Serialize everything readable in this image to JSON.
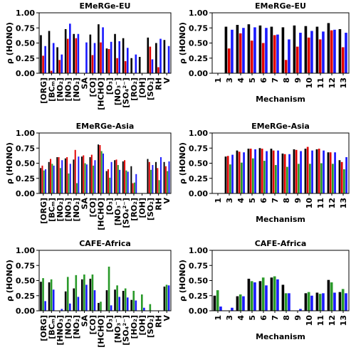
{
  "chart_data": [
    {
      "type": "bar",
      "title": "EMeRGe-EU",
      "ylabel": "ρ (HONO)",
      "categories": [
        "[ORG]",
        "[BCₘ]",
        "[NO₂]",
        "[NO₃]",
        "[NO₂]",
        "SA",
        "[CO]",
        "[HCHO]",
        "[O₃]",
        "[NO₃⁻]",
        "[SO₄²⁻]",
        "[RO₂]",
        "[OH]",
        "[SO₂]",
        "RH",
        "V"
      ],
      "series": [
        {
          "color": "#000000",
          "values": [
            0.63,
            0.7,
            0.43,
            0.73,
            0.65,
            null,
            0.64,
            0.81,
            0.41,
            0.65,
            0.58,
            0.25,
            0.27,
            0.59,
            0.5,
            0.55
          ]
        },
        {
          "color": "#e00000",
          "values": [
            0.29,
            0.04,
            0.22,
            0.57,
            0.58,
            null,
            0.3,
            0.51,
            0.4,
            0.25,
            0.2,
            null,
            null,
            0.44,
            0.1,
            null
          ]
        },
        {
          "color": "#1a1aff",
          "values": [
            0.45,
            0.5,
            0.31,
            0.82,
            0.65,
            0.51,
            0.5,
            0.76,
            0.52,
            0.53,
            0.42,
            0.31,
            null,
            0.23,
            0.57,
            0.45
          ]
        }
      ],
      "ylim": [
        0,
        1
      ],
      "yticks": [
        {
          "value": 0,
          "label": "0.00"
        },
        {
          "value": 0.25,
          "label": "0.25"
        },
        {
          "value": 0.5,
          "label": "0.50"
        },
        {
          "value": 0.75,
          "label": "0.75"
        },
        {
          "value": 1,
          "label": "1.00"
        }
      ]
    },
    {
      "type": "bar",
      "title": "EMeRGe-EU",
      "ylabel": "ρ (HONO)",
      "xlabel": "Mechanism",
      "categories": [
        "1",
        "3",
        "4",
        "5",
        "6",
        "7",
        "8",
        "9",
        "10",
        "11",
        "12",
        "13"
      ],
      "series": [
        {
          "color": "#000000",
          "values": [
            null,
            0.77,
            0.8,
            0.81,
            0.79,
            0.77,
            0.76,
            0.79,
            0.78,
            0.77,
            0.83,
            0.73
          ]
        },
        {
          "color": "#e00000",
          "values": [
            null,
            0.41,
            0.66,
            0.54,
            0.5,
            0.63,
            0.22,
            0.44,
            0.59,
            0.56,
            0.71,
            0.43
          ]
        },
        {
          "color": "#1a1aff",
          "values": [
            null,
            0.72,
            0.75,
            0.76,
            0.75,
            0.64,
            0.56,
            0.67,
            0.7,
            0.69,
            0.72,
            0.67
          ]
        }
      ],
      "ylim": [
        0,
        1
      ],
      "yticks": [
        {
          "value": 0,
          "label": "0.00"
        },
        {
          "value": 0.25,
          "label": "0.25"
        },
        {
          "value": 0.5,
          "label": "0.50"
        },
        {
          "value": 0.75,
          "label": "0.75"
        },
        {
          "value": 1,
          "label": "1.00"
        }
      ]
    },
    {
      "type": "bar",
      "title": "EMeRGe-Asia",
      "ylabel": "ρ (HONO)",
      "categories": [
        "[ORG]",
        "[BCₘ]",
        "[NO₂]",
        "[NO₃]",
        "[NO₂]",
        "SA",
        "[CO]",
        "[HCHO]",
        "[O₃]",
        "[NO₃⁻]",
        "[SO₄²⁻]",
        "[RO₂]",
        "[OH]",
        "[SO₂]",
        "RH",
        "V"
      ],
      "series": [
        {
          "color": "#000000",
          "values": [
            0.42,
            0.52,
            0.6,
            0.58,
            0.56,
            0.61,
            0.6,
            0.81,
            0.37,
            0.55,
            0.53,
            0.45,
            null,
            0.57,
            0.52,
            0.52
          ]
        },
        {
          "color": "#e00000",
          "values": [
            0.46,
            0.57,
            0.6,
            0.6,
            0.72,
            0.63,
            0.64,
            0.8,
            0.4,
            0.56,
            0.55,
            0.17,
            null,
            0.52,
            0.42,
            0.45
          ]
        },
        {
          "color": "#2a9a2a",
          "values": [
            0.38,
            0.49,
            0.42,
            0.33,
            0.17,
            0.5,
            0.46,
            0.7,
            0.26,
            0.47,
            0.38,
            0.18,
            null,
            0.39,
            0.22,
            0.37
          ]
        },
        {
          "color": "#1a1aff",
          "values": [
            0.4,
            0.46,
            0.55,
            0.49,
            0.61,
            0.48,
            0.55,
            0.66,
            0.52,
            0.39,
            0.36,
            0.32,
            null,
            0.47,
            0.6,
            0.53
          ]
        }
      ],
      "ylim": [
        0,
        1
      ],
      "yticks": [
        {
          "value": 0,
          "label": "0.00"
        },
        {
          "value": 0.25,
          "label": "0.25"
        },
        {
          "value": 0.5,
          "label": "0.50"
        },
        {
          "value": 0.75,
          "label": "0.75"
        },
        {
          "value": 1,
          "label": "1.00"
        }
      ]
    },
    {
      "type": "bar",
      "title": "EMeRGe-Asia",
      "ylabel": "ρ (HONO)",
      "xlabel": "Mechanism",
      "categories": [
        "1",
        "3",
        "4",
        "5",
        "6",
        "7",
        "8",
        "9",
        "10",
        "11",
        "12",
        "13"
      ],
      "series": [
        {
          "color": "#000000",
          "values": [
            null,
            0.61,
            0.71,
            0.74,
            0.75,
            0.74,
            0.66,
            0.73,
            0.74,
            0.73,
            0.68,
            0.55
          ]
        },
        {
          "color": "#e00000",
          "values": [
            null,
            0.62,
            0.69,
            0.74,
            0.74,
            0.71,
            0.65,
            0.72,
            0.77,
            0.74,
            0.68,
            0.52
          ]
        },
        {
          "color": "#2a9a2a",
          "values": [
            null,
            0.48,
            0.51,
            0.58,
            0.54,
            0.47,
            0.44,
            0.49,
            0.49,
            0.5,
            0.49,
            0.4
          ]
        },
        {
          "color": "#1a1aff",
          "values": [
            null,
            0.64,
            0.68,
            0.73,
            0.7,
            0.71,
            0.65,
            0.7,
            0.71,
            0.71,
            0.68,
            0.6
          ]
        }
      ],
      "ylim": [
        0,
        1
      ],
      "yticks": [
        {
          "value": 0,
          "label": "0.00"
        },
        {
          "value": 0.25,
          "label": "0.25"
        },
        {
          "value": 0.5,
          "label": "0.50"
        },
        {
          "value": 0.75,
          "label": "0.75"
        },
        {
          "value": 1,
          "label": "1.00"
        }
      ]
    },
    {
      "type": "bar",
      "title": "CAFE-Africa",
      "ylabel": "ρ (HONO)",
      "categories": [
        "[ORG]",
        "[BCₘ]",
        "[HNO₃]",
        "[NO₃]",
        "[NO₂]",
        "SA",
        "[CO]",
        "[HCHO]",
        "[O₃]",
        "[NO₃⁻]",
        "[SO₄²⁻]",
        "[HO₂]",
        "[OH]",
        "[SO₂]",
        "RH",
        "V"
      ],
      "series": [
        {
          "color": "#000000",
          "values": [
            0.48,
            0.47,
            null,
            0.32,
            0.37,
            0.52,
            0.53,
            0.13,
            0.34,
            0.35,
            0.33,
            0.18,
            null,
            null,
            null,
            0.4
          ]
        },
        {
          "color": "#2a9a2a",
          "values": [
            0.54,
            0.52,
            null,
            0.56,
            0.59,
            0.6,
            0.6,
            0.15,
            0.73,
            0.42,
            0.37,
            0.33,
            0.27,
            0.11,
            null,
            0.43
          ]
        },
        {
          "color": "#1a1aff",
          "values": [
            0.16,
            0.35,
            0.03,
            0.12,
            0.23,
            0.43,
            0.34,
            null,
            0.09,
            0.23,
            0.22,
            0.17,
            0.05,
            null,
            null,
            0.42
          ]
        }
      ],
      "ylim": [
        0,
        1
      ],
      "yticks": [
        {
          "value": 0,
          "label": "0.00"
        },
        {
          "value": 0.25,
          "label": "0.25"
        },
        {
          "value": 0.5,
          "label": "0.50"
        },
        {
          "value": 0.75,
          "label": "0.75"
        },
        {
          "value": 1,
          "label": "1.00"
        }
      ]
    },
    {
      "type": "bar",
      "title": "CAFE-Africa",
      "ylabel": "ρ (HONO)",
      "xlabel": "Mechanism",
      "categories": [
        "1",
        "3",
        "4",
        "5",
        "6",
        "7",
        "8",
        "9",
        "10",
        "11",
        "12",
        "13"
      ],
      "series": [
        {
          "color": "#000000",
          "values": [
            0.25,
            null,
            0.24,
            0.53,
            0.49,
            0.55,
            0.43,
            null,
            0.29,
            0.3,
            0.51,
            0.31
          ]
        },
        {
          "color": "#2a9a2a",
          "values": [
            0.34,
            null,
            0.27,
            0.49,
            0.55,
            0.57,
            0.29,
            null,
            0.31,
            0.28,
            0.47,
            0.36
          ]
        },
        {
          "color": "#1a1aff",
          "values": [
            0.07,
            0.05,
            0.24,
            0.47,
            0.42,
            0.52,
            0.29,
            0.03,
            0.25,
            0.29,
            0.3,
            0.29
          ]
        }
      ],
      "ylim": [
        0,
        1
      ],
      "yticks": [
        {
          "value": 0,
          "label": "0.00"
        },
        {
          "value": 0.25,
          "label": "0.25"
        },
        {
          "value": 0.5,
          "label": "0.50"
        },
        {
          "value": 0.75,
          "label": "0.75"
        },
        {
          "value": 1,
          "label": "1.00"
        }
      ]
    }
  ]
}
